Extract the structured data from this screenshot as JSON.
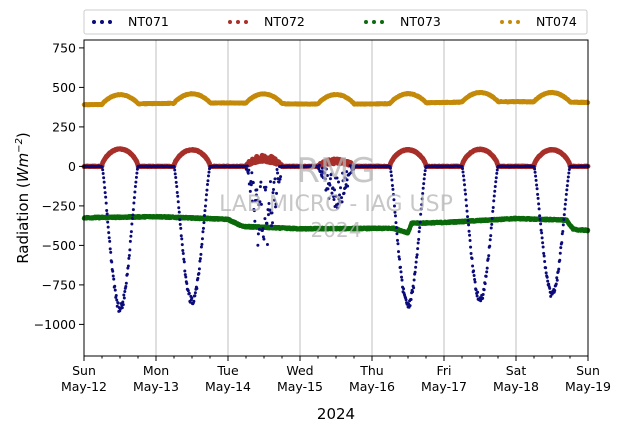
{
  "chart_data": {
    "type": "scatter",
    "title": "",
    "xlabel": "2024",
    "ylabel": "Radiation (Wm⁻²)",
    "ylabel_main": "Radiation (",
    "ylabel_unit": "Wm",
    "ylabel_exp": "−2",
    "ylabel_close": ")",
    "ylim": [
      -1200,
      800
    ],
    "xlim_days": [
      0,
      7
    ],
    "yticks": [
      750,
      500,
      250,
      0,
      -250,
      -500,
      -750,
      -1000
    ],
    "ytick_labels": [
      "750",
      "500",
      "250",
      "0",
      "−250",
      "−500",
      "−750",
      "−1000"
    ],
    "xticks": [
      {
        "day": 0,
        "line1": "Sun",
        "line2": "May-12"
      },
      {
        "day": 1,
        "line1": "Mon",
        "line2": "May-13"
      },
      {
        "day": 2,
        "line1": "Tue",
        "line2": "May-14"
      },
      {
        "day": 3,
        "line1": "Wed",
        "line2": "May-15"
      },
      {
        "day": 4,
        "line1": "Thu",
        "line2": "May-16"
      },
      {
        "day": 5,
        "line1": "Fri",
        "line2": "May-17"
      },
      {
        "day": 6,
        "line1": "Sat",
        "line2": "May-18"
      },
      {
        "day": 7,
        "line1": "Sun",
        "line2": "May-19"
      }
    ],
    "grid": "vertical",
    "legend_position": "top",
    "watermark": {
      "line1": "RMG",
      "line2": "LAB MICRO - IAG USP",
      "line3": "2024"
    },
    "series": [
      {
        "name": "NT071",
        "color": "#0a0a7a",
        "style": "sparse",
        "daily_min": [
          -900,
          -850,
          -450,
          -200,
          -880,
          -840,
          -810
        ],
        "cloudy": [
          false,
          false,
          true,
          true,
          false,
          false,
          false
        ]
      },
      {
        "name": "NT072",
        "color": "#a8302a",
        "style": "dense",
        "daily_max": [
          110,
          105,
          60,
          40,
          105,
          108,
          105
        ]
      },
      {
        "name": "NT073",
        "color": "#0b6a0b",
        "style": "dense",
        "base": [
          [
            0,
            -325
          ],
          [
            1,
            -318
          ],
          [
            2,
            -335
          ],
          [
            2.2,
            -380
          ],
          [
            3,
            -395
          ],
          [
            4.3,
            -392
          ],
          [
            4.5,
            -420
          ],
          [
            4.55,
            -360
          ],
          [
            5,
            -355
          ],
          [
            6,
            -330
          ],
          [
            6.7,
            -340
          ],
          [
            6.8,
            -400
          ],
          [
            7,
            -405
          ]
        ]
      },
      {
        "name": "NT074",
        "color": "#c48a0a",
        "style": "dense",
        "base": [
          [
            0,
            390
          ],
          [
            1,
            398
          ],
          [
            2,
            402
          ],
          [
            3,
            395
          ],
          [
            4,
            395
          ],
          [
            5,
            405
          ],
          [
            6,
            410
          ],
          [
            7,
            405
          ]
        ],
        "daily_bump": 60
      }
    ]
  }
}
